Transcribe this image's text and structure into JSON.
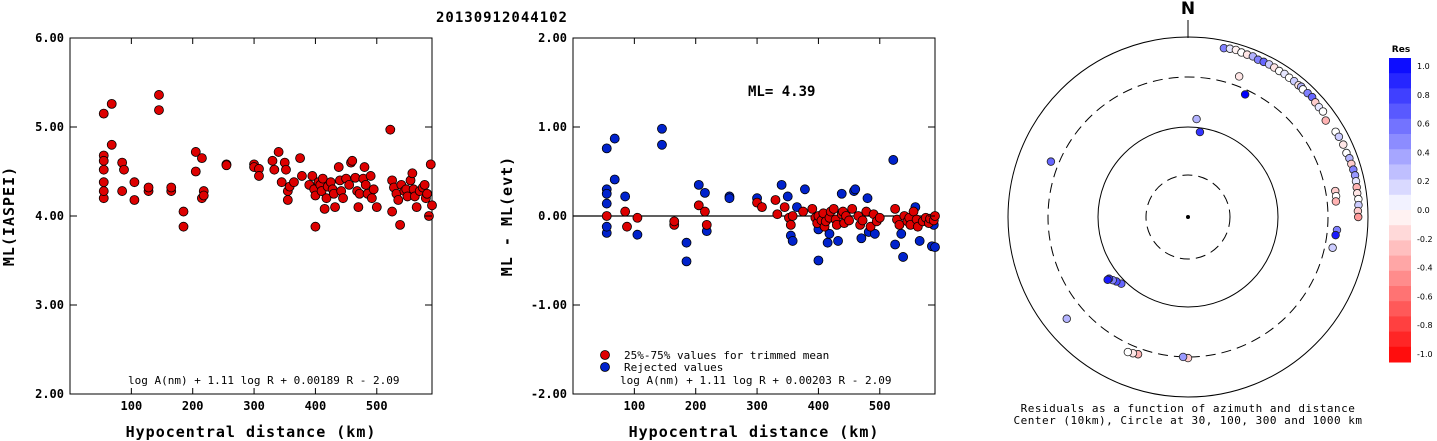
{
  "title": "20130912044102",
  "chart_data": [
    {
      "type": "scatter",
      "xlabel": "Hypocentral distance (km)",
      "ylabel": "ML(IASPEI)",
      "xlim": [
        0,
        590
      ],
      "ylim": [
        2.0,
        6.0
      ],
      "xticks": [
        "100",
        "200",
        "300",
        "400",
        "500"
      ],
      "yticks": [
        "2.00",
        "3.00",
        "4.00",
        "5.00",
        "6.00"
      ],
      "formula": "log A(nm) + 1.11 log R + 0.00189 R - 2.09",
      "points": [
        [
          55,
          4.2
        ],
        [
          55,
          4.28
        ],
        [
          55,
          5.15
        ],
        [
          55,
          4.68
        ],
        [
          55,
          4.62
        ],
        [
          55,
          4.38
        ],
        [
          55,
          4.52
        ],
        [
          68,
          5.26
        ],
        [
          68,
          4.8
        ],
        [
          85,
          4.6
        ],
        [
          85,
          4.28
        ],
        [
          88,
          4.52
        ],
        [
          105,
          4.38
        ],
        [
          105,
          4.18
        ],
        [
          128,
          4.28
        ],
        [
          128,
          4.32
        ],
        [
          145,
          5.36
        ],
        [
          145,
          5.19
        ],
        [
          165,
          4.28
        ],
        [
          165,
          4.32
        ],
        [
          185,
          4.05
        ],
        [
          185,
          3.88
        ],
        [
          205,
          4.72
        ],
        [
          205,
          4.5
        ],
        [
          215,
          4.65
        ],
        [
          215,
          4.2
        ],
        [
          218,
          4.28
        ],
        [
          218,
          4.23
        ],
        [
          255,
          4.58
        ],
        [
          255,
          4.57
        ],
        [
          300,
          4.58
        ],
        [
          300,
          4.55
        ],
        [
          308,
          4.53
        ],
        [
          308,
          4.45
        ],
        [
          330,
          4.62
        ],
        [
          333,
          4.52
        ],
        [
          340,
          4.72
        ],
        [
          345,
          4.38
        ],
        [
          350,
          4.6
        ],
        [
          352,
          4.52
        ],
        [
          355,
          4.28
        ],
        [
          355,
          4.18
        ],
        [
          358,
          4.33
        ],
        [
          365,
          4.38
        ],
        [
          375,
          4.65
        ],
        [
          378,
          4.45
        ],
        [
          390,
          4.35
        ],
        [
          395,
          4.45
        ],
        [
          398,
          4.3
        ],
        [
          400,
          4.23
        ],
        [
          400,
          3.88
        ],
        [
          405,
          4.38
        ],
        [
          408,
          4.35
        ],
        [
          410,
          4.28
        ],
        [
          412,
          4.42
        ],
        [
          415,
          4.08
        ],
        [
          418,
          4.2
        ],
        [
          420,
          4.33
        ],
        [
          425,
          4.38
        ],
        [
          428,
          4.3
        ],
        [
          430,
          4.25
        ],
        [
          432,
          4.1
        ],
        [
          438,
          4.55
        ],
        [
          440,
          4.4
        ],
        [
          442,
          4.28
        ],
        [
          445,
          4.2
        ],
        [
          450,
          4.42
        ],
        [
          455,
          4.35
        ],
        [
          458,
          4.6
        ],
        [
          460,
          4.62
        ],
        [
          465,
          4.43
        ],
        [
          468,
          4.28
        ],
        [
          470,
          4.1
        ],
        [
          472,
          4.25
        ],
        [
          478,
          4.42
        ],
        [
          480,
          4.55
        ],
        [
          482,
          4.35
        ],
        [
          485,
          4.25
        ],
        [
          490,
          4.45
        ],
        [
          492,
          4.2
        ],
        [
          495,
          4.3
        ],
        [
          500,
          4.1
        ],
        [
          522,
          4.97
        ],
        [
          525,
          4.4
        ],
        [
          525,
          4.05
        ],
        [
          528,
          4.32
        ],
        [
          532,
          4.25
        ],
        [
          535,
          4.18
        ],
        [
          538,
          3.9
        ],
        [
          540,
          4.35
        ],
        [
          545,
          4.28
        ],
        [
          548,
          4.3
        ],
        [
          550,
          4.22
        ],
        [
          555,
          4.4
        ],
        [
          558,
          4.48
        ],
        [
          560,
          4.3
        ],
        [
          562,
          4.22
        ],
        [
          565,
          4.1
        ],
        [
          570,
          4.28
        ],
        [
          575,
          4.32
        ],
        [
          578,
          4.35
        ],
        [
          580,
          4.2
        ],
        [
          582,
          4.25
        ],
        [
          585,
          4.0
        ],
        [
          588,
          4.58
        ],
        [
          590,
          4.12
        ]
      ]
    },
    {
      "type": "scatter",
      "xlabel": "Hypocentral distance (km)",
      "ylabel": "ML - ML(evt)",
      "xlim": [
        0,
        590
      ],
      "ylim": [
        -2.0,
        2.0
      ],
      "xticks": [
        "100",
        "200",
        "300",
        "400",
        "500"
      ],
      "yticks": [
        "-2.00",
        "-1.00",
        "0.00",
        "1.00",
        "2.00"
      ],
      "annotation": "ML= 4.39",
      "formula": "log A(nm) + 1.11 log R + 0.00203 R - 2.09",
      "legend": [
        "25%-75% values for trimmed mean",
        "Rejected values"
      ],
      "series": [
        {
          "name": "25%-75% values for trimmed mean",
          "color": "#dd0000",
          "points": [
            [
              55,
              0.0
            ],
            [
              85,
              0.05
            ],
            [
              88,
              -0.12
            ],
            [
              105,
              -0.02
            ],
            [
              165,
              -0.1
            ],
            [
              165,
              -0.06
            ],
            [
              205,
              0.12
            ],
            [
              215,
              0.05
            ],
            [
              218,
              -0.1
            ],
            [
              300,
              0.15
            ],
            [
              308,
              0.1
            ],
            [
              330,
              0.18
            ],
            [
              333,
              0.02
            ],
            [
              345,
              0.1
            ],
            [
              352,
              -0.02
            ],
            [
              355,
              -0.1
            ],
            [
              358,
              0.0
            ],
            [
              375,
              0.05
            ],
            [
              390,
              0.08
            ],
            [
              395,
              -0.02
            ],
            [
              398,
              -0.08
            ],
            [
              400,
              0.0
            ],
            [
              405,
              -0.05
            ],
            [
              408,
              0.03
            ],
            [
              410,
              -0.12
            ],
            [
              412,
              -0.06
            ],
            [
              418,
              -0.02
            ],
            [
              420,
              0.05
            ],
            [
              425,
              0.08
            ],
            [
              428,
              -0.04
            ],
            [
              430,
              -0.1
            ],
            [
              438,
              0.02
            ],
            [
              440,
              0.05
            ],
            [
              442,
              -0.08
            ],
            [
              445,
              0.0
            ],
            [
              450,
              -0.05
            ],
            [
              455,
              0.08
            ],
            [
              465,
              0.0
            ],
            [
              468,
              -0.1
            ],
            [
              472,
              -0.05
            ],
            [
              478,
              0.05
            ],
            [
              485,
              -0.12
            ],
            [
              490,
              0.02
            ],
            [
              495,
              -0.06
            ],
            [
              500,
              -0.02
            ],
            [
              525,
              0.08
            ],
            [
              528,
              -0.04
            ],
            [
              532,
              -0.1
            ],
            [
              540,
              0.0
            ],
            [
              545,
              -0.06
            ],
            [
              548,
              -0.02
            ],
            [
              550,
              -0.1
            ],
            [
              555,
              0.05
            ],
            [
              560,
              -0.04
            ],
            [
              562,
              -0.12
            ],
            [
              570,
              -0.06
            ],
            [
              575,
              -0.02
            ],
            [
              580,
              -0.08
            ],
            [
              582,
              -0.03
            ],
            [
              588,
              -0.05
            ],
            [
              590,
              0.0
            ]
          ]
        },
        {
          "name": "Rejected values",
          "color": "#0022cc",
          "points": [
            [
              55,
              0.3
            ],
            [
              55,
              0.25
            ],
            [
              55,
              0.76
            ],
            [
              55,
              0.14
            ],
            [
              55,
              -0.19
            ],
            [
              55,
              -0.12
            ],
            [
              68,
              0.87
            ],
            [
              68,
              0.41
            ],
            [
              85,
              0.22
            ],
            [
              105,
              -0.21
            ],
            [
              145,
              0.98
            ],
            [
              145,
              0.8
            ],
            [
              185,
              -0.3
            ],
            [
              185,
              -0.51
            ],
            [
              205,
              0.35
            ],
            [
              215,
              0.26
            ],
            [
              218,
              -0.17
            ],
            [
              255,
              0.22
            ],
            [
              255,
              0.2
            ],
            [
              300,
              0.2
            ],
            [
              340,
              0.35
            ],
            [
              350,
              0.22
            ],
            [
              355,
              -0.22
            ],
            [
              358,
              -0.28
            ],
            [
              365,
              0.1
            ],
            [
              378,
              0.3
            ],
            [
              400,
              -0.15
            ],
            [
              400,
              -0.5
            ],
            [
              405,
              -0.08
            ],
            [
              415,
              -0.3
            ],
            [
              418,
              -0.2
            ],
            [
              432,
              -0.28
            ],
            [
              438,
              0.25
            ],
            [
              458,
              0.28
            ],
            [
              460,
              0.3
            ],
            [
              470,
              -0.25
            ],
            [
              480,
              0.2
            ],
            [
              482,
              -0.18
            ],
            [
              492,
              -0.2
            ],
            [
              522,
              0.63
            ],
            [
              525,
              -0.32
            ],
            [
              535,
              -0.2
            ],
            [
              538,
              -0.46
            ],
            [
              558,
              0.1
            ],
            [
              565,
              -0.28
            ],
            [
              578,
              -0.05
            ],
            [
              585,
              -0.34
            ],
            [
              588,
              -0.1
            ],
            [
              590,
              -0.35
            ]
          ]
        }
      ]
    },
    {
      "type": "polar-scatter",
      "north_label": "N",
      "caption": [
        "Residuals as a function of azimuth and distance",
        "Center (10km), Circle at 30, 100, 300 and 1000 km"
      ],
      "colorbar_title": "Res",
      "colorbar_ticks": [
        "1.0",
        "0.8",
        "0.6",
        "0.4",
        "0.2",
        "0.0",
        "-0.2",
        "-0.4",
        "-0.6",
        "-0.8",
        "-1.0"
      ],
      "stations_az_dist_res": [
        [
          12,
          800,
          0.5
        ],
        [
          14,
          820,
          0.1
        ],
        [
          16,
          830,
          -0.05
        ],
        [
          18,
          810,
          0.0
        ],
        [
          20,
          805,
          -0.1
        ],
        [
          22,
          815,
          0.3
        ],
        [
          24,
          790,
          0.5
        ],
        [
          26,
          800,
          0.6
        ],
        [
          28,
          805,
          0.2
        ],
        [
          30,
          800,
          -0.1
        ],
        [
          32,
          790,
          0.0
        ],
        [
          34,
          800,
          0.1
        ],
        [
          36,
          790,
          0.0
        ],
        [
          38,
          795,
          0.2
        ],
        [
          40,
          785,
          -0.1
        ],
        [
          41,
          800,
          0.3
        ],
        [
          42,
          780,
          0.0
        ],
        [
          44,
          790,
          0.5
        ],
        [
          46,
          800,
          0.6
        ],
        [
          48,
          770,
          -0.2
        ],
        [
          50,
          760,
          0.1
        ],
        [
          52,
          770,
          0.0
        ],
        [
          55,
          700,
          -0.3
        ],
        [
          60,
          750,
          0.0
        ],
        [
          62,
          760,
          0.2
        ],
        [
          65,
          770,
          -0.1
        ],
        [
          68,
          760,
          0.0
        ],
        [
          70,
          780,
          0.3
        ],
        [
          72,
          780,
          -0.2
        ],
        [
          74,
          785,
          0.5
        ],
        [
          76,
          790,
          0.4
        ],
        [
          78,
          780,
          0.1
        ],
        [
          80,
          770,
          -0.3
        ],
        [
          82,
          760,
          -0.1
        ],
        [
          84,
          770,
          0.0
        ],
        [
          86,
          760,
          0.2
        ],
        [
          88,
          740,
          -0.2
        ],
        [
          90,
          745,
          -0.4
        ],
        [
          20,
          400,
          -0.1
        ],
        [
          25,
          270,
          1.0
        ],
        [
          5,
          120,
          0.3
        ],
        [
          8,
          90,
          0.8
        ],
        [
          80,
          400,
          -0.2
        ],
        [
          82,
          400,
          0.0
        ],
        [
          84,
          390,
          -0.3
        ],
        [
          95,
          400,
          0.5
        ],
        [
          97,
          390,
          0.9
        ],
        [
          102,
          380,
          0.2
        ],
        [
          225,
          110,
          0.6
        ],
        [
          228,
          115,
          0.7
        ],
        [
          230,
          120,
          0.5
        ],
        [
          232,
          125,
          0.8
        ],
        [
          232,
          130,
          0.9
        ],
        [
          180,
          310,
          -0.2
        ],
        [
          182,
          300,
          0.4
        ],
        [
          200,
          360,
          -0.3
        ],
        [
          202,
          370,
          -0.1
        ],
        [
          204,
          380,
          0.0
        ],
        [
          230,
          520,
          0.3
        ],
        [
          292,
          380,
          0.6
        ]
      ]
    }
  ]
}
